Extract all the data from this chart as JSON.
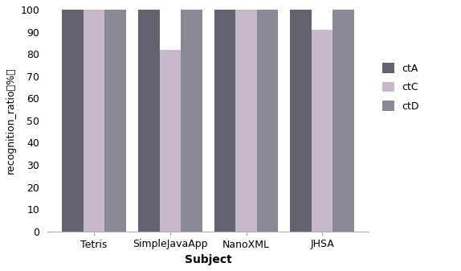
{
  "categories": [
    "Tetris",
    "SimpleJavaApp",
    "NanoXML",
    "JHSA"
  ],
  "series": [
    {
      "label": "ctA",
      "values": [
        100,
        100,
        100,
        100
      ],
      "color": "#636370"
    },
    {
      "label": "ctC",
      "values": [
        100,
        82,
        100,
        91
      ],
      "color": "#c8b8cc"
    },
    {
      "label": "ctD",
      "values": [
        100,
        100,
        100,
        100
      ],
      "color": "#8a8a96"
    }
  ],
  "ylabel": "recognition_ratio（%）",
  "xlabel": "Subject",
  "ylim": [
    0,
    100
  ],
  "yticks": [
    0,
    10,
    20,
    30,
    40,
    50,
    60,
    70,
    80,
    90,
    100
  ],
  "bar_width": 0.28,
  "background_color": "#ffffff",
  "figsize": [
    5.74,
    3.37
  ],
  "dpi": 100
}
